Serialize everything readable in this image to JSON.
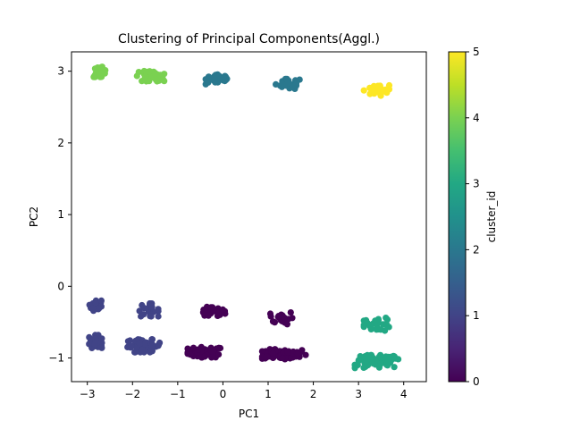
{
  "chart_data": {
    "type": "scatter",
    "title": "Clustering of Principal Components(Aggl.)",
    "xlabel": "PC1",
    "ylabel": "PC2",
    "xlim": [
      -3.35,
      4.5
    ],
    "ylim": [
      -1.33,
      3.27
    ],
    "xticks": [
      -3,
      -2,
      -1,
      0,
      1,
      2,
      3,
      4
    ],
    "yticks": [
      -1,
      0,
      1,
      2,
      3
    ],
    "grid": false,
    "colorbar": {
      "label": "cluster_id",
      "range": [
        0,
        5
      ],
      "ticks": [
        0,
        1,
        2,
        3,
        4,
        5
      ],
      "colormap": "viridis"
    },
    "clusters": [
      {
        "cluster_id": 0,
        "center": [
          -0.4,
          -0.92
        ],
        "spread": [
          0.38,
          0.04
        ],
        "n": 60
      },
      {
        "cluster_id": 0,
        "center": [
          -0.25,
          -0.36
        ],
        "spread": [
          0.3,
          0.04
        ],
        "n": 30
      },
      {
        "cluster_id": 0,
        "center": [
          1.35,
          -0.95
        ],
        "spread": [
          0.48,
          0.04
        ],
        "n": 70
      },
      {
        "cluster_id": 0,
        "center": [
          1.3,
          -0.44
        ],
        "spread": [
          0.25,
          0.05
        ],
        "n": 22
      },
      {
        "cluster_id": 1,
        "center": [
          -2.82,
          -0.77
        ],
        "spread": [
          0.14,
          0.05
        ],
        "n": 40
      },
      {
        "cluster_id": 1,
        "center": [
          -2.82,
          -0.27
        ],
        "spread": [
          0.13,
          0.04
        ],
        "n": 25
      },
      {
        "cluster_id": 1,
        "center": [
          -1.75,
          -0.83
        ],
        "spread": [
          0.36,
          0.05
        ],
        "n": 55
      },
      {
        "cluster_id": 1,
        "center": [
          -1.65,
          -0.33
        ],
        "spread": [
          0.22,
          0.05
        ],
        "n": 22
      },
      {
        "cluster_id": 2,
        "center": [
          -0.1,
          2.89
        ],
        "spread": [
          0.28,
          0.04
        ],
        "n": 35
      },
      {
        "cluster_id": 2,
        "center": [
          1.45,
          2.82
        ],
        "spread": [
          0.28,
          0.04
        ],
        "n": 28
      },
      {
        "cluster_id": 3,
        "center": [
          3.4,
          -1.05
        ],
        "spread": [
          0.48,
          0.05
        ],
        "n": 75
      },
      {
        "cluster_id": 3,
        "center": [
          3.42,
          -0.53
        ],
        "spread": [
          0.3,
          0.05
        ],
        "n": 28
      },
      {
        "cluster_id": 4,
        "center": [
          -2.72,
          2.99
        ],
        "spread": [
          0.15,
          0.04
        ],
        "n": 30
      },
      {
        "cluster_id": 4,
        "center": [
          -1.6,
          2.93
        ],
        "spread": [
          0.3,
          0.04
        ],
        "n": 40
      },
      {
        "cluster_id": 5,
        "center": [
          3.4,
          2.73
        ],
        "spread": [
          0.28,
          0.04
        ],
        "n": 32
      }
    ]
  }
}
